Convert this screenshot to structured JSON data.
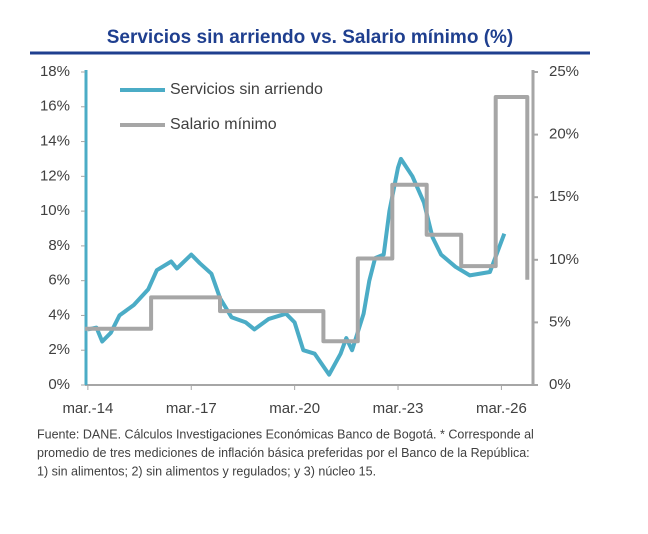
{
  "chart_data": {
    "type": "line",
    "title": "Servicios sin arriendo vs. Salario mínimo (%)",
    "source": [
      "Fuente: DANE. Cálculos Investigaciones Económicas Banco de Bogotá. * Corresponde al",
      "promedio de tres mediciones de inflación básica preferidas por el Banco de la República:",
      "1) sin alimentos; 2) sin alimentos y regulados; y 3) núcleo 15."
    ],
    "xlim": [
      "2014-02",
      "2027-02"
    ],
    "xticks": [
      {
        "value": "2014-03",
        "label": "mar.-14"
      },
      {
        "value": "2017-03",
        "label": "mar.-17"
      },
      {
        "value": "2020-03",
        "label": "mar.-20"
      },
      {
        "value": "2023-03",
        "label": "mar.-23"
      },
      {
        "value": "2026-03",
        "label": "mar.-26"
      }
    ],
    "ylim": [
      0,
      18
    ],
    "yticks": [
      {
        "value": 0,
        "label": "0%"
      },
      {
        "value": 2,
        "label": "2%"
      },
      {
        "value": 4,
        "label": "4%"
      },
      {
        "value": 6,
        "label": "6%"
      },
      {
        "value": 8,
        "label": "8%"
      },
      {
        "value": 10,
        "label": "10%"
      },
      {
        "value": 12,
        "label": "12%"
      },
      {
        "value": 14,
        "label": "14%"
      },
      {
        "value": 16,
        "label": "16%"
      },
      {
        "value": 18,
        "label": "18%"
      }
    ],
    "y2lim": [
      0,
      25
    ],
    "y2ticks": [
      {
        "value": 0,
        "label": "0%"
      },
      {
        "value": 5,
        "label": "5%"
      },
      {
        "value": 10,
        "label": "10%"
      },
      {
        "value": 15,
        "label": "15%"
      },
      {
        "value": 20,
        "label": "20%"
      },
      {
        "value": 25,
        "label": "25%"
      }
    ],
    "legend": "top-left",
    "series": [
      {
        "name": "Servicios sin arriendo",
        "color": "#4bacc6",
        "x": [
          "2014-03",
          "2014-06",
          "2014-08",
          "2014-11",
          "2015-02",
          "2015-07",
          "2015-12",
          "2016-03",
          "2016-08",
          "2016-10",
          "2017-03",
          "2017-06",
          "2017-10",
          "2018-01",
          "2018-05",
          "2018-10",
          "2019-01",
          "2019-06",
          "2019-12",
          "2020-03",
          "2020-06",
          "2020-10",
          "2021-03",
          "2021-07",
          "2021-09",
          "2021-11",
          "2022-03",
          "2022-05",
          "2022-07",
          "2022-10",
          "2022-12",
          "2023-03",
          "2023-04",
          "2023-08",
          "2023-12",
          "2024-03",
          "2024-06",
          "2024-11",
          "2025-04",
          "2025-11",
          "2026-04"
        ],
        "values": [
          3.2,
          3.3,
          2.5,
          3.0,
          4.0,
          4.6,
          5.5,
          6.6,
          7.1,
          6.7,
          7.5,
          7.0,
          6.4,
          5.0,
          3.9,
          3.6,
          3.2,
          3.8,
          4.1,
          3.6,
          2.0,
          1.8,
          0.6,
          1.8,
          2.7,
          2.0,
          4.1,
          6.0,
          7.3,
          7.5,
          10.0,
          12.5,
          13.0,
          12.0,
          10.5,
          8.5,
          7.5,
          6.8,
          6.3,
          6.5,
          8.7
        ]
      },
      {
        "name": "Salario mínimo",
        "color": "#a6a6a6",
        "axis": "y2",
        "x": [
          "2014-02",
          "2016-01",
          "2016-01",
          "2018-01",
          "2018-01",
          "2021-01",
          "2021-01",
          "2022-01",
          "2022-01",
          "2023-01",
          "2023-01",
          "2024-01",
          "2024-01",
          "2025-01",
          "2025-01",
          "2026-01",
          "2026-01",
          "2026-12",
          "2026-12"
        ],
        "values": [
          4.5,
          4.5,
          7.0,
          7.0,
          5.9,
          5.9,
          3.5,
          3.5,
          10.1,
          10.1,
          16,
          16,
          12,
          12,
          9.5,
          9.5,
          23,
          23,
          8.4
        ]
      }
    ]
  }
}
